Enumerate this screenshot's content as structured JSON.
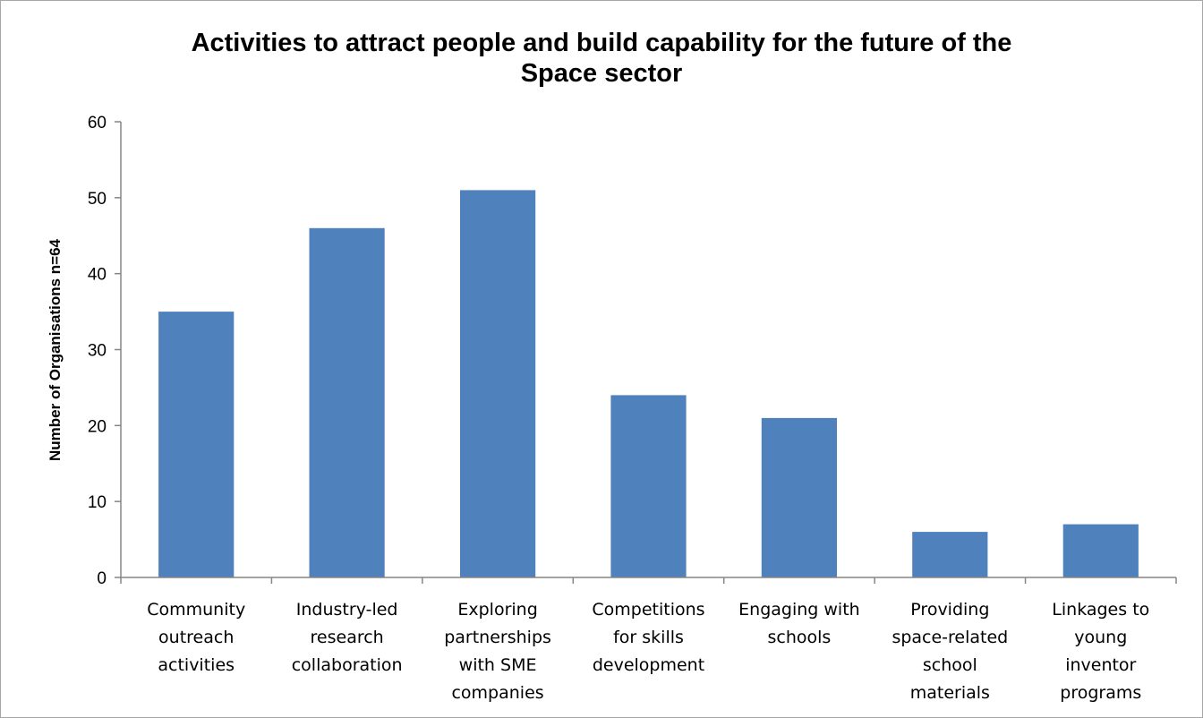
{
  "chart_data": {
    "type": "bar",
    "title_lines": [
      "Activities  to attract people and build capability for the future of the",
      "Space sector"
    ],
    "ylabel": "Number of Organisations  n=64",
    "xlabel": "",
    "ylim": [
      0,
      60
    ],
    "yticks": [
      0,
      10,
      20,
      30,
      40,
      50,
      60
    ],
    "categories": [
      [
        "Community",
        "outreach",
        "activities"
      ],
      [
        "Industry-led",
        "research",
        "collaboration"
      ],
      [
        "Exploring",
        "partnerships",
        "with SME",
        "companies"
      ],
      [
        "Competitions",
        "for skills",
        "development"
      ],
      [
        "Engaging with",
        "schools"
      ],
      [
        "Providing",
        "space-related",
        "school",
        "materials"
      ],
      [
        "Linkages to",
        "young",
        "inventor",
        "programs"
      ]
    ],
    "values": [
      35,
      46,
      51,
      24,
      21,
      6,
      7
    ],
    "bar_color": "#4f81bd",
    "grid": false,
    "legend": "none"
  }
}
